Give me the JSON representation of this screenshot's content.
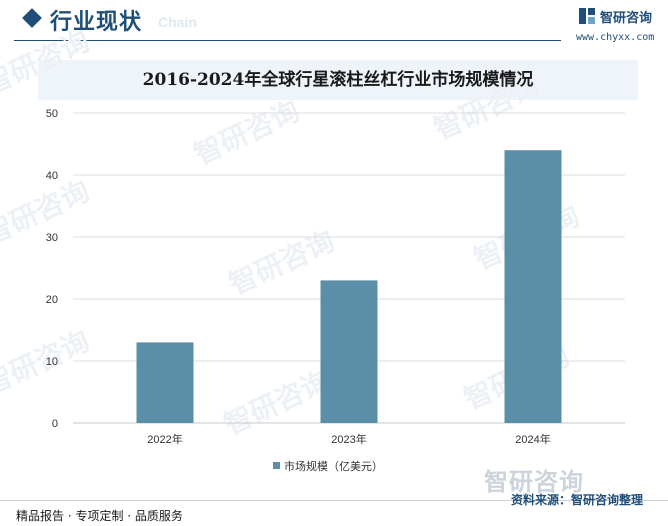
{
  "header": {
    "title": "行业现状",
    "ghost_text": "Chain",
    "brand_name": "智研咨询",
    "brand_url": "www.chyxx.com"
  },
  "watermark_text": "智研咨询",
  "colors": {
    "accent": "#1f4e79",
    "bar": "#5b8fa8",
    "title_band": "#eef4fa"
  },
  "chart_data": {
    "type": "bar",
    "title": "2016-2024年全球行星滚柱丝杠行业市场规模情况",
    "categories": [
      "2022年",
      "2023年",
      "2024年"
    ],
    "series": [
      {
        "name": "市场规模（亿美元）",
        "values": [
          13,
          23,
          44
        ]
      }
    ],
    "ylim": [
      0,
      50
    ],
    "yticks": [
      0,
      10,
      20,
      30,
      40,
      50
    ],
    "xlabel": "",
    "ylabel": "",
    "grid": true,
    "legend_position": "bottom-center"
  },
  "footer": {
    "left_text": "精品报告 · 专项定制 · 品质服务",
    "logo_text": "智研咨询",
    "source_text": "资料来源：智研咨询整理"
  }
}
